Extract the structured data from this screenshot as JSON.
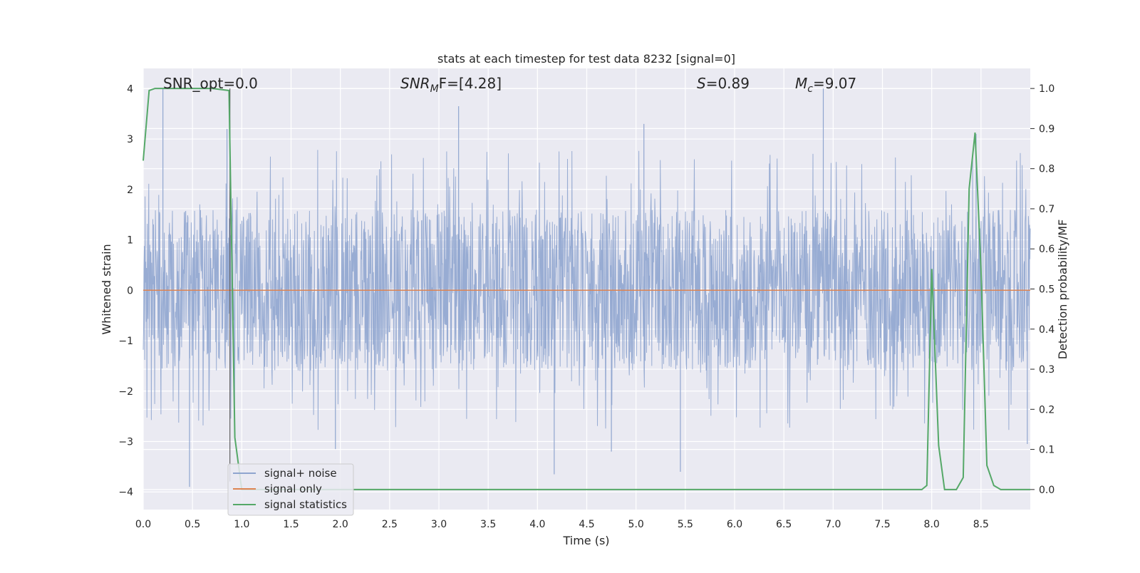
{
  "chart_data": {
    "type": "line",
    "title": "stats at each timestep for test data 8232 [signal=0]",
    "xlabel": "Time (s)",
    "ylabel_left": "Whitened strain",
    "ylabel_right": "Detection probability/MF",
    "xlim": [
      0.0,
      9.0
    ],
    "ylim_left": [
      -4.35,
      4.4
    ],
    "ylim_right": [
      -0.05,
      1.05
    ],
    "xticks": [
      0.0,
      0.5,
      1.0,
      1.5,
      2.0,
      2.5,
      3.0,
      3.5,
      4.0,
      4.5,
      5.0,
      5.5,
      6.0,
      6.5,
      7.0,
      7.5,
      8.0,
      8.5
    ],
    "xtick_labels": [
      "0.0",
      "0.5",
      "1.0",
      "1.5",
      "2.0",
      "2.5",
      "3.0",
      "3.5",
      "4.0",
      "4.5",
      "5.0",
      "5.5",
      "6.0",
      "6.5",
      "7.0",
      "7.5",
      "8.0",
      "8.5"
    ],
    "yticks_left": [
      -4,
      -3,
      -2,
      -1,
      0,
      1,
      2,
      3,
      4
    ],
    "ytick_labels_left": [
      "−4",
      "−3",
      "−2",
      "−1",
      "0",
      "1",
      "2",
      "3",
      "4"
    ],
    "yticks_right": [
      0.0,
      0.1,
      0.2,
      0.3,
      0.4,
      0.5,
      0.6,
      0.7,
      0.8,
      0.9,
      1.0
    ],
    "ytick_labels_right": [
      "0.0",
      "0.1",
      "0.2",
      "0.3",
      "0.4",
      "0.5",
      "0.6",
      "0.7",
      "0.8",
      "0.9",
      "1.0"
    ],
    "grid": true,
    "legend": {
      "placement": "lower-left",
      "entries": [
        {
          "label": "signal+ noise",
          "color": "#8fa5cf"
        },
        {
          "label": "signal only",
          "color": "#dd8452"
        },
        {
          "label": "signal statistics",
          "color": "#55a868"
        }
      ]
    },
    "annotations": {
      "snr_opt": "SNR_opt=0.0",
      "snr_mf_italic": "SNR",
      "snr_mf_sub": "M",
      "snr_mf_rest": "F=[4.28]",
      "s_italic": "S",
      "s_rest": "=0.89",
      "mc_italic": "M",
      "mc_sub": "c",
      "mc_rest": "=9.07"
    },
    "series": [
      {
        "name": "signal+ noise",
        "axis": "left",
        "color": "#8fa5cf",
        "style": "dense noise",
        "amplitude_band": [
          -1.6,
          1.6
        ],
        "notable_peaks": [
          [
            0.2,
            4.0
          ],
          [
            0.85,
            3.2
          ],
          [
            3.2,
            3.65
          ],
          [
            5.08,
            3.3
          ],
          [
            6.9,
            4.0
          ],
          [
            8.45,
            3.1
          ]
        ],
        "notable_troughs": [
          [
            0.47,
            -3.9
          ],
          [
            4.17,
            -3.65
          ],
          [
            4.75,
            -3.2
          ],
          [
            5.45,
            -3.6
          ],
          [
            1.95,
            -3.15
          ],
          [
            8.97,
            -3.05
          ]
        ]
      },
      {
        "name": "signal only",
        "axis": "left",
        "color": "#dd8452",
        "x": [
          0.0,
          9.0
        ],
        "y": [
          0.0,
          0.0
        ]
      },
      {
        "name": "signal statistics",
        "axis": "right",
        "color": "#55a868",
        "x": [
          0.0,
          0.06,
          0.12,
          0.3,
          0.5,
          0.7,
          0.87,
          0.93,
          1.0,
          1.05,
          2.0,
          4.0,
          6.0,
          7.9,
          7.95,
          8.0,
          8.07,
          8.13,
          8.25,
          8.32,
          8.38,
          8.44,
          8.5,
          8.56,
          8.63,
          8.7,
          9.0
        ],
        "y": [
          0.82,
          0.995,
          1.0,
          1.0,
          1.0,
          1.0,
          0.995,
          0.13,
          0.0,
          0.0,
          0.0,
          0.0,
          0.0,
          0.0,
          0.01,
          0.55,
          0.11,
          0.0,
          0.0,
          0.03,
          0.75,
          0.89,
          0.55,
          0.06,
          0.01,
          0.0,
          0.0
        ]
      }
    ]
  }
}
